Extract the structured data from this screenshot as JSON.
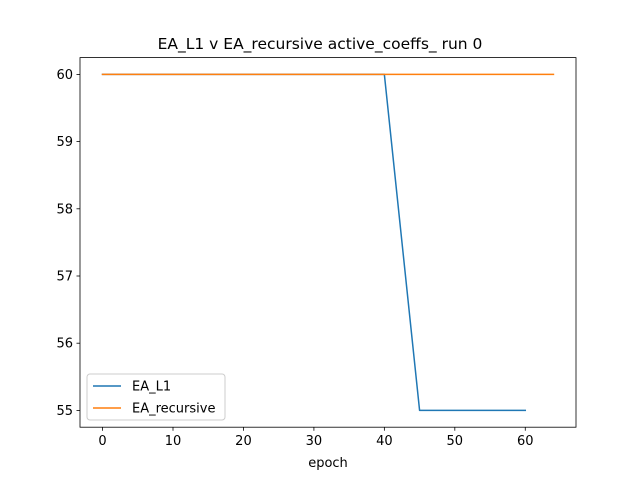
{
  "chart_data": {
    "type": "line",
    "title": "EA_L1 v EA_recursive active_coeffs_ run 0",
    "xlabel": "epoch",
    "ylabel": "",
    "xlim": [
      -3.2,
      67.2
    ],
    "ylim": [
      54.75,
      60.25
    ],
    "xticks": [
      0,
      10,
      20,
      30,
      40,
      50,
      60
    ],
    "yticks": [
      55,
      56,
      57,
      58,
      59,
      60
    ],
    "grid": false,
    "legend_position": "lower-left",
    "series": [
      {
        "name": "EA_L1",
        "color": "#1f77b4",
        "x": [
          0,
          40,
          45,
          60
        ],
        "y": [
          60,
          60,
          55,
          55
        ]
      },
      {
        "name": "EA_recursive",
        "color": "#ff7f0e",
        "x": [
          0,
          64
        ],
        "y": [
          60,
          60
        ]
      }
    ]
  }
}
